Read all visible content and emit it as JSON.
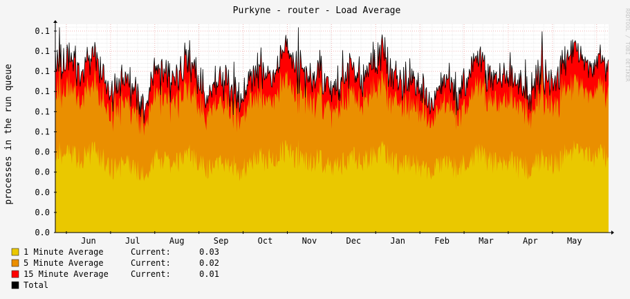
{
  "chart_data": {
    "type": "area",
    "title": "Purkyne - router  - Load Average",
    "ylabel": "processes in the run queue",
    "watermark": "RRDTOOL / TOBI OETIKER",
    "x_tick_labels": [
      "Jun",
      "Jul",
      "Aug",
      "Sep",
      "Oct",
      "Nov",
      "Dec",
      "Jan",
      "Feb",
      "Mar",
      "Apr",
      "May"
    ],
    "y_tick_labels": [
      "0.0",
      "0.0",
      "0.0",
      "0.0",
      "0.0",
      "0.1",
      "0.1",
      "0.1",
      "0.1",
      "0.1",
      "0.1"
    ],
    "ylim": [
      0.0,
      0.1
    ],
    "grid": true,
    "stacked": true,
    "series": [
      {
        "name": "1 Minute Average",
        "color": "#eac800",
        "current": "0.03",
        "baseline": 0.035,
        "wobble": 0.006,
        "noise": 0.012,
        "spikes": 0.004
      },
      {
        "name": "5 Minute Average",
        "color": "#ea8f00",
        "current": "0.02",
        "baseline": 0.03,
        "wobble": 0.004,
        "noise": 0.01,
        "spikes": 0.003
      },
      {
        "name": "15 Minute Average",
        "color": "#ff0000",
        "current": "0.01",
        "baseline": 0.012,
        "wobble": 0.003,
        "noise": 0.008,
        "spikes": 0.002
      }
    ],
    "legend": [
      {
        "color": "#eac800",
        "label": "1 Minute Average",
        "current_label": "Current:",
        "current": "0.03"
      },
      {
        "color": "#ea8f00",
        "label": "5 Minute Average",
        "current_label": "Current:",
        "current": "0.02"
      },
      {
        "color": "#ff0000",
        "label": "15 Minute Average",
        "current_label": "Current:",
        "current": "0.01"
      },
      {
        "color": "#000000",
        "label": "Total",
        "current_label": "",
        "current": ""
      }
    ],
    "total_line_color": "#000000",
    "legend_placement": "bottom-left"
  }
}
